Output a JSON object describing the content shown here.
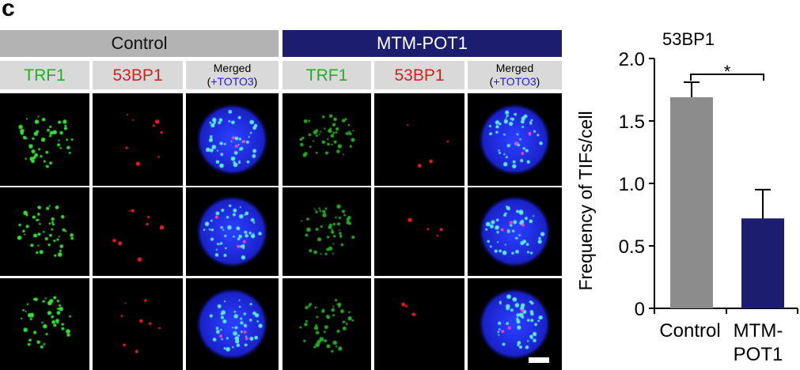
{
  "panel_letter": "c",
  "groups": [
    {
      "title": "Control",
      "header_color": "#b3b3b3",
      "title_color": "#111111"
    },
    {
      "title": "MTM-POT1",
      "header_color": "#1c1d6e",
      "title_color": "#ffffff"
    }
  ],
  "channels": {
    "trf1": "TRF1",
    "bp": "53BP1",
    "merged": "Merged",
    "toto_open": "(",
    "toto": "+TOTO3",
    "toto_close": ")"
  },
  "colors": {
    "trf1": "#22b022",
    "bp": "#d42020",
    "toto": "#2020c0",
    "control_bar": "#8c8c8c",
    "mtm_bar": "#1c1d6e"
  },
  "chart_data": {
    "type": "bar",
    "title": "53BP1",
    "ylabel": "Frequency of TIFs/cell",
    "categories": [
      "Control",
      "MTM-\nPOT1"
    ],
    "category_lines": [
      [
        "Control"
      ],
      [
        "MTM-",
        "POT1"
      ]
    ],
    "values": [
      1.69,
      0.72
    ],
    "error_upper": [
      1.81,
      0.95
    ],
    "ylim": [
      0,
      2.0
    ],
    "yticks": [
      "0",
      "0.5",
      "1.0",
      "1.5",
      "2.0"
    ],
    "annotation": "*",
    "grid": false
  }
}
